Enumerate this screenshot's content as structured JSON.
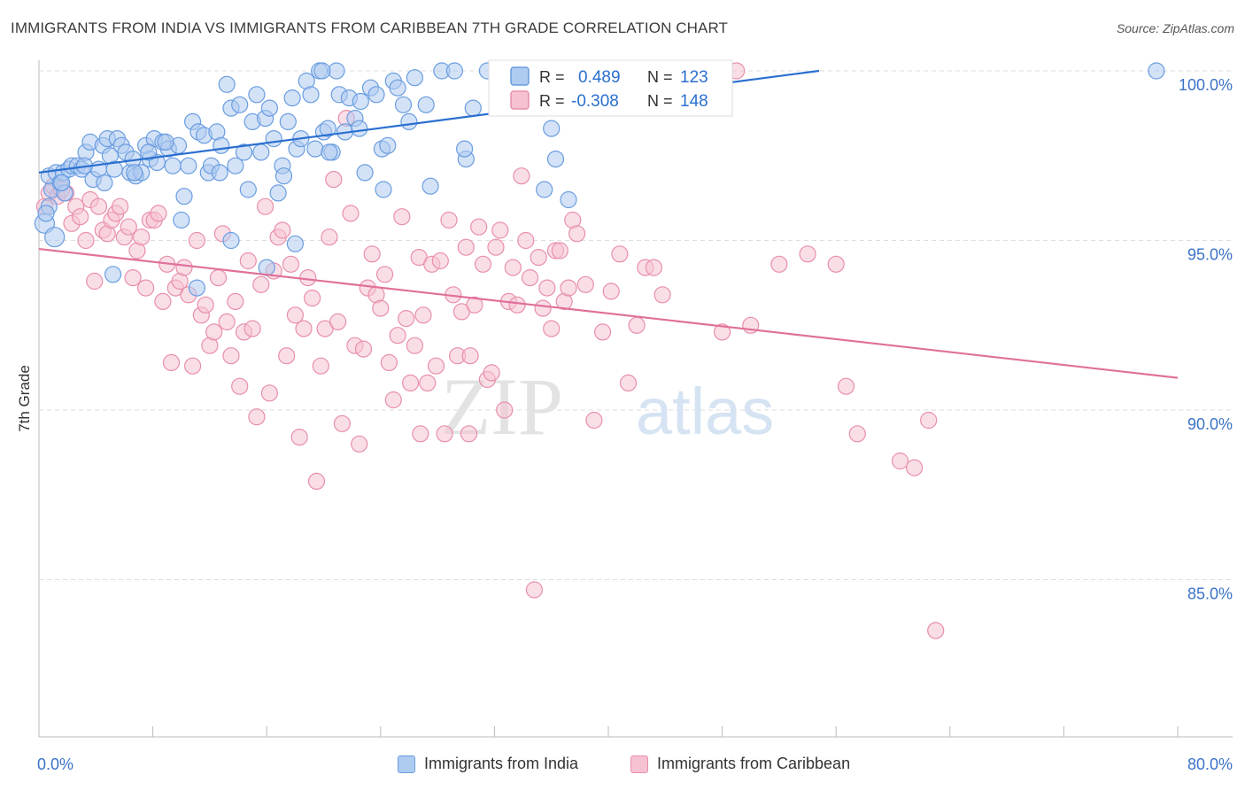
{
  "title": "IMMIGRANTS FROM INDIA VS IMMIGRANTS FROM CARIBBEAN 7TH GRADE CORRELATION CHART",
  "source": "Source: ZipAtlas.com",
  "watermark": {
    "zip": "ZIP",
    "atlas": "atlas"
  },
  "colors": {
    "india_fill": "#aecbf0",
    "india_stroke": "#6a9de0",
    "india_line": "#2a6fcf",
    "carib_fill": "#f6c2d2",
    "carib_stroke": "#e88fab",
    "carib_line": "#e0709a",
    "axis_label": "#3a72c8",
    "grid": "#dedede"
  },
  "legend": {
    "india": {
      "r_label": "R =",
      "r_value": "0.489",
      "n_label": "N =",
      "n_value": "123"
    },
    "carib": {
      "r_label": "R =",
      "r_value": "-0.308",
      "n_label": "N =",
      "n_value": "148"
    }
  },
  "chart_data": {
    "type": "scatter",
    "xlabel": "",
    "ylabel": "7th Grade",
    "xlim": [
      0,
      80
    ],
    "ylim": [
      80.5,
      100.8
    ],
    "x_tick_labels": [
      "0.0%",
      "80.0%"
    ],
    "y_ticks": [
      85,
      90,
      95,
      100
    ],
    "y_tick_labels": [
      "85.0%",
      "90.0%",
      "95.0%",
      "100.0%"
    ],
    "grid": true,
    "legend_position": "top-center",
    "series": [
      {
        "name": "Immigrants from India",
        "r": 0.489,
        "n": 123,
        "trend": {
          "x": [
            0,
            54.8
          ],
          "y": [
            97.0,
            100.0
          ]
        },
        "points": [
          [
            0.4,
            95.5
          ],
          [
            1.1,
            95.1
          ],
          [
            0.7,
            96.0
          ],
          [
            0.5,
            95.8
          ],
          [
            0.9,
            96.5
          ],
          [
            0.7,
            96.9
          ],
          [
            1.2,
            97.0
          ],
          [
            1.5,
            96.7
          ],
          [
            1.7,
            97.0
          ],
          [
            1.8,
            96.4
          ],
          [
            2.1,
            97.1
          ],
          [
            2.3,
            97.2
          ],
          [
            2.7,
            97.2
          ],
          [
            3.0,
            97.1
          ],
          [
            3.3,
            97.6
          ],
          [
            3.6,
            97.9
          ],
          [
            3.8,
            96.8
          ],
          [
            4.2,
            97.1
          ],
          [
            4.5,
            97.8
          ],
          [
            4.8,
            98.0
          ],
          [
            5.0,
            97.5
          ],
          [
            5.3,
            97.1
          ],
          [
            5.5,
            98.0
          ],
          [
            5.8,
            97.8
          ],
          [
            6.1,
            97.6
          ],
          [
            6.4,
            97.0
          ],
          [
            6.6,
            97.4
          ],
          [
            6.8,
            96.9
          ],
          [
            7.2,
            97.0
          ],
          [
            7.5,
            97.8
          ],
          [
            7.8,
            97.4
          ],
          [
            8.1,
            98.0
          ],
          [
            8.3,
            97.3
          ],
          [
            8.7,
            97.9
          ],
          [
            9.1,
            97.7
          ],
          [
            9.4,
            97.2
          ],
          [
            9.8,
            97.8
          ],
          [
            10.2,
            96.3
          ],
          [
            10.5,
            97.2
          ],
          [
            10.8,
            98.5
          ],
          [
            11.2,
            98.2
          ],
          [
            11.6,
            98.1
          ],
          [
            11.9,
            97.0
          ],
          [
            12.1,
            97.2
          ],
          [
            12.5,
            98.2
          ],
          [
            12.8,
            97.8
          ],
          [
            13.2,
            99.6
          ],
          [
            13.5,
            98.9
          ],
          [
            13.8,
            97.2
          ],
          [
            14.1,
            99.0
          ],
          [
            14.4,
            97.6
          ],
          [
            14.7,
            96.5
          ],
          [
            15.0,
            98.5
          ],
          [
            15.3,
            99.3
          ],
          [
            15.6,
            97.6
          ],
          [
            15.9,
            98.6
          ],
          [
            16.2,
            98.9
          ],
          [
            16.5,
            98.0
          ],
          [
            16.8,
            96.4
          ],
          [
            17.1,
            97.2
          ],
          [
            17.5,
            98.5
          ],
          [
            17.8,
            99.2
          ],
          [
            18.1,
            97.7
          ],
          [
            18.4,
            98.0
          ],
          [
            18.8,
            99.7
          ],
          [
            19.1,
            99.3
          ],
          [
            19.4,
            97.7
          ],
          [
            19.7,
            100.0
          ],
          [
            20.0,
            98.2
          ],
          [
            20.3,
            98.3
          ],
          [
            20.6,
            97.6
          ],
          [
            20.9,
            100.0
          ],
          [
            21.1,
            99.3
          ],
          [
            21.5,
            98.2
          ],
          [
            21.8,
            99.2
          ],
          [
            22.2,
            98.6
          ],
          [
            22.6,
            99.1
          ],
          [
            22.9,
            97.0
          ],
          [
            23.3,
            99.5
          ],
          [
            23.7,
            99.3
          ],
          [
            24.1,
            97.7
          ],
          [
            24.5,
            97.8
          ],
          [
            24.9,
            99.7
          ],
          [
            25.2,
            99.5
          ],
          [
            25.6,
            99.0
          ],
          [
            26.0,
            98.5
          ],
          [
            26.4,
            99.8
          ],
          [
            27.2,
            99.0
          ],
          [
            28.3,
            100.0
          ],
          [
            29.2,
            100.0
          ],
          [
            30.0,
            97.4
          ],
          [
            30.5,
            98.9
          ],
          [
            31.5,
            100.0
          ],
          [
            34.0,
            99.6
          ],
          [
            35.0,
            99.0
          ],
          [
            36.0,
            98.3
          ],
          [
            36.3,
            97.4
          ],
          [
            37.2,
            96.2
          ],
          [
            38.0,
            99.8
          ],
          [
            39.0,
            100.0
          ],
          [
            40.0,
            99.5
          ],
          [
            1.6,
            96.7
          ],
          [
            3.2,
            97.2
          ],
          [
            4.6,
            96.7
          ],
          [
            5.2,
            94.0
          ],
          [
            6.7,
            97.0
          ],
          [
            7.7,
            97.6
          ],
          [
            8.9,
            97.9
          ],
          [
            10.0,
            95.6
          ],
          [
            11.1,
            93.6
          ],
          [
            12.7,
            97.0
          ],
          [
            13.5,
            95.0
          ],
          [
            16.0,
            94.2
          ],
          [
            17.2,
            96.9
          ],
          [
            18.0,
            94.9
          ],
          [
            19.9,
            100.0
          ],
          [
            20.4,
            97.6
          ],
          [
            22.5,
            98.3
          ],
          [
            24.2,
            96.5
          ],
          [
            27.5,
            96.6
          ],
          [
            29.9,
            97.7
          ],
          [
            35.5,
            96.5
          ],
          [
            41.2,
            99.0
          ],
          [
            78.5,
            100.0
          ]
        ]
      },
      {
        "name": "Immigrants from Caribbean",
        "r": -0.308,
        "n": 148,
        "trend": {
          "x": [
            0,
            80
          ],
          "y": [
            94.75,
            90.95
          ]
        },
        "points": [
          [
            0.4,
            96.0
          ],
          [
            0.7,
            96.4
          ],
          [
            1.0,
            96.6
          ],
          [
            1.3,
            96.3
          ],
          [
            1.6,
            96.5
          ],
          [
            1.9,
            96.4
          ],
          [
            2.3,
            95.5
          ],
          [
            2.6,
            96.0
          ],
          [
            2.9,
            95.7
          ],
          [
            3.3,
            95.0
          ],
          [
            3.6,
            96.2
          ],
          [
            3.9,
            93.8
          ],
          [
            4.2,
            96.0
          ],
          [
            4.5,
            95.3
          ],
          [
            4.8,
            95.2
          ],
          [
            5.1,
            95.6
          ],
          [
            5.4,
            95.8
          ],
          [
            5.7,
            96.0
          ],
          [
            6.0,
            95.1
          ],
          [
            6.3,
            95.4
          ],
          [
            6.6,
            93.9
          ],
          [
            6.9,
            94.7
          ],
          [
            7.2,
            95.1
          ],
          [
            7.5,
            93.6
          ],
          [
            7.8,
            95.6
          ],
          [
            8.1,
            95.6
          ],
          [
            8.4,
            95.8
          ],
          [
            8.7,
            93.2
          ],
          [
            9.0,
            94.3
          ],
          [
            9.3,
            91.4
          ],
          [
            9.6,
            93.6
          ],
          [
            9.9,
            93.8
          ],
          [
            10.2,
            94.2
          ],
          [
            10.5,
            93.4
          ],
          [
            10.8,
            91.3
          ],
          [
            11.1,
            95.0
          ],
          [
            11.4,
            92.8
          ],
          [
            11.7,
            93.1
          ],
          [
            12.0,
            91.9
          ],
          [
            12.3,
            92.3
          ],
          [
            12.6,
            93.9
          ],
          [
            12.9,
            95.2
          ],
          [
            13.2,
            92.6
          ],
          [
            13.5,
            91.6
          ],
          [
            13.8,
            93.2
          ],
          [
            14.1,
            90.7
          ],
          [
            14.4,
            92.3
          ],
          [
            14.7,
            94.4
          ],
          [
            15.0,
            92.4
          ],
          [
            15.3,
            89.8
          ],
          [
            15.6,
            93.7
          ],
          [
            15.9,
            96.0
          ],
          [
            16.2,
            90.5
          ],
          [
            16.5,
            94.1
          ],
          [
            16.8,
            95.1
          ],
          [
            17.1,
            95.3
          ],
          [
            17.4,
            91.6
          ],
          [
            17.7,
            94.3
          ],
          [
            18.0,
            92.8
          ],
          [
            18.3,
            89.2
          ],
          [
            18.6,
            92.4
          ],
          [
            18.9,
            93.9
          ],
          [
            19.2,
            93.3
          ],
          [
            19.5,
            87.9
          ],
          [
            19.8,
            91.3
          ],
          [
            20.1,
            92.4
          ],
          [
            20.4,
            95.1
          ],
          [
            20.7,
            96.8
          ],
          [
            21.0,
            92.6
          ],
          [
            21.3,
            89.6
          ],
          [
            21.6,
            98.6
          ],
          [
            21.9,
            95.8
          ],
          [
            22.2,
            91.9
          ],
          [
            22.5,
            89.0
          ],
          [
            22.8,
            91.8
          ],
          [
            23.1,
            93.6
          ],
          [
            23.4,
            94.6
          ],
          [
            23.7,
            93.4
          ],
          [
            24.0,
            93.0
          ],
          [
            24.3,
            94.0
          ],
          [
            24.6,
            91.4
          ],
          [
            24.9,
            90.3
          ],
          [
            25.2,
            92.2
          ],
          [
            25.5,
            95.7
          ],
          [
            25.8,
            92.7
          ],
          [
            26.1,
            90.8
          ],
          [
            26.4,
            91.9
          ],
          [
            26.7,
            94.5
          ],
          [
            27.0,
            92.8
          ],
          [
            27.3,
            90.8
          ],
          [
            27.6,
            94.3
          ],
          [
            27.9,
            91.3
          ],
          [
            28.2,
            94.4
          ],
          [
            28.5,
            89.3
          ],
          [
            28.8,
            95.6
          ],
          [
            29.1,
            93.4
          ],
          [
            29.4,
            91.6
          ],
          [
            29.7,
            92.9
          ],
          [
            30.0,
            94.8
          ],
          [
            30.3,
            91.6
          ],
          [
            30.6,
            93.1
          ],
          [
            30.9,
            95.4
          ],
          [
            31.2,
            94.3
          ],
          [
            31.5,
            90.9
          ],
          [
            31.8,
            91.1
          ],
          [
            32.1,
            94.8
          ],
          [
            32.4,
            95.3
          ],
          [
            32.7,
            90.0
          ],
          [
            33.0,
            93.2
          ],
          [
            33.3,
            94.2
          ],
          [
            33.6,
            93.1
          ],
          [
            33.9,
            96.9
          ],
          [
            34.2,
            95.0
          ],
          [
            34.5,
            93.9
          ],
          [
            34.8,
            84.7
          ],
          [
            35.1,
            94.5
          ],
          [
            35.4,
            93.0
          ],
          [
            35.7,
            93.6
          ],
          [
            36.0,
            92.4
          ],
          [
            36.3,
            94.7
          ],
          [
            36.6,
            94.7
          ],
          [
            36.9,
            93.2
          ],
          [
            37.2,
            93.6
          ],
          [
            37.5,
            95.6
          ],
          [
            37.8,
            95.2
          ],
          [
            38.4,
            93.7
          ],
          [
            39.0,
            89.7
          ],
          [
            39.6,
            92.3
          ],
          [
            40.2,
            93.5
          ],
          [
            40.8,
            94.6
          ],
          [
            41.4,
            90.8
          ],
          [
            42.0,
            92.5
          ],
          [
            42.6,
            94.2
          ],
          [
            43.2,
            94.2
          ],
          [
            43.8,
            93.4
          ],
          [
            44.4,
            99.9
          ],
          [
            49.0,
            100.0
          ],
          [
            54.0,
            94.6
          ],
          [
            56.0,
            94.3
          ],
          [
            57.5,
            89.3
          ],
          [
            60.5,
            88.5
          ],
          [
            61.5,
            88.3
          ],
          [
            62.5,
            89.7
          ],
          [
            63.0,
            83.5
          ],
          [
            56.7,
            90.7
          ],
          [
            48.0,
            92.3
          ],
          [
            50.0,
            92.5
          ],
          [
            52.0,
            94.3
          ],
          [
            30.2,
            89.3
          ],
          [
            26.8,
            89.3
          ]
        ]
      }
    ]
  },
  "bottom_legend": {
    "india_label": "Immigrants from India",
    "carib_label": "Immigrants from Caribbean"
  }
}
